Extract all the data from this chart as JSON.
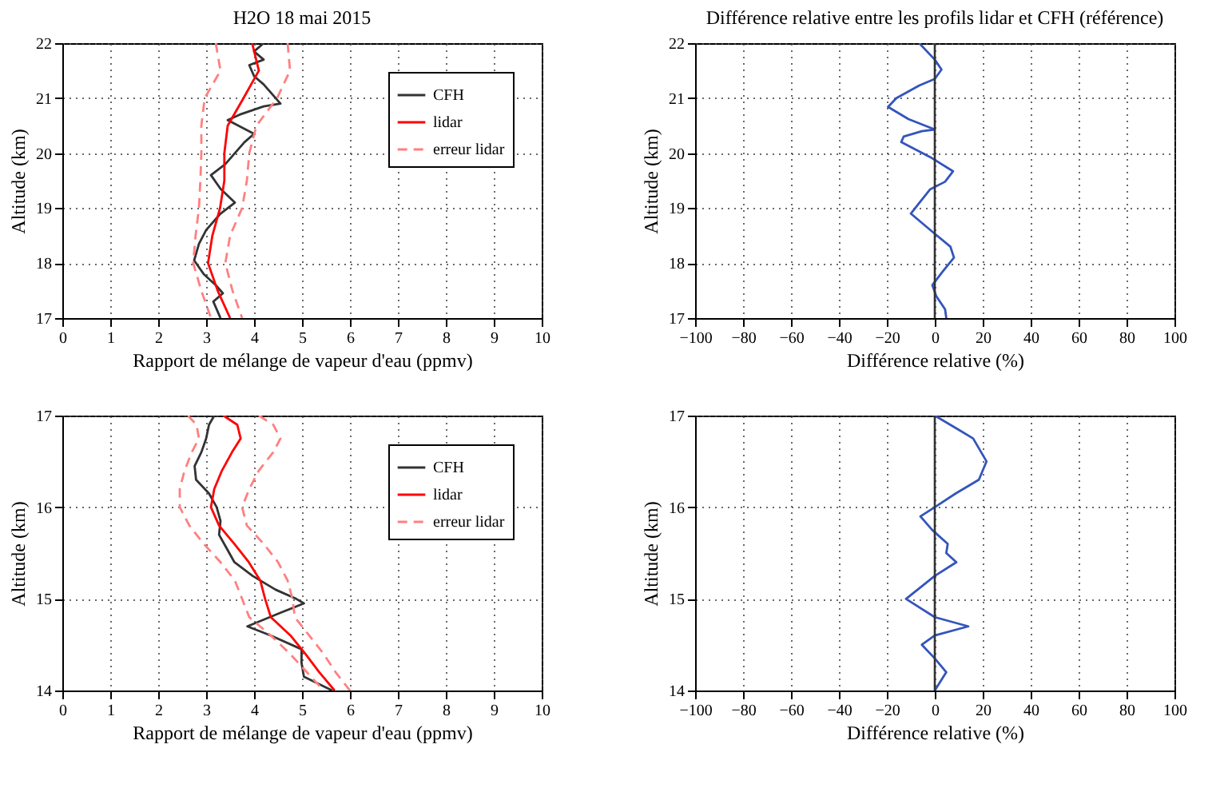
{
  "chart_data": [
    {
      "type": "line",
      "title": "H2O 18 mai 2015",
      "xlabel": "Rapport de mélange de vapeur d'eau (ppmv)",
      "ylabel": "Altitude (km)",
      "xlim": [
        0,
        10
      ],
      "xticks": [
        0,
        1,
        2,
        3,
        4,
        5,
        6,
        7,
        8,
        9,
        10
      ],
      "ylim": [
        17,
        22
      ],
      "yticks": [
        17,
        18,
        19,
        20,
        21,
        22
      ],
      "grid": true,
      "legend": "top right",
      "series": [
        {
          "name": "CFH",
          "color": "#333333",
          "x": [
            4.2,
            4.0,
            4.2,
            3.9,
            4.0,
            4.2,
            4.55,
            4.2,
            3.7,
            3.45,
            4.0,
            3.8,
            3.6,
            3.4,
            3.1,
            3.3,
            3.6,
            3.3,
            3.0,
            2.85,
            2.75,
            2.95,
            3.2,
            3.35,
            3.15,
            3.3
          ],
          "values": [
            22,
            21.85,
            21.7,
            21.6,
            21.4,
            21.25,
            20.9,
            20.85,
            20.7,
            20.6,
            20.35,
            20.2,
            20.0,
            19.8,
            19.6,
            19.35,
            19.1,
            18.9,
            18.6,
            18.35,
            18.05,
            17.8,
            17.6,
            17.45,
            17.3,
            17.0
          ]
        },
        {
          "name": "lidar",
          "color": "#ff0000",
          "x": [
            3.96,
            4.1,
            3.78,
            3.45,
            3.38,
            3.38,
            3.29,
            3.13,
            3.04,
            3.24,
            3.5
          ],
          "values": [
            22,
            21.5,
            21,
            20.5,
            20,
            19.5,
            19,
            18.5,
            18,
            17.5,
            17
          ]
        },
        {
          "name": "erreur lidar",
          "color": "#ff8080",
          "line_style": "dashed",
          "x": [
            3.2,
            3.3,
            2.97,
            2.9,
            2.9,
            2.88,
            2.85,
            2.78,
            2.73,
            2.9,
            3.1
          ],
          "values": [
            22,
            21.5,
            21,
            20.5,
            20,
            19.5,
            19,
            18.5,
            18,
            17.5,
            17
          ]
        },
        {
          "color": "#ff8080",
          "line_style": "dashed",
          "x": [
            4.7,
            4.75,
            4.48,
            4.05,
            3.9,
            3.85,
            3.75,
            3.5,
            3.4,
            3.55,
            3.75
          ],
          "values": [
            22,
            21.5,
            21,
            20.5,
            20,
            19.5,
            19,
            18.5,
            18,
            17.5,
            17
          ]
        }
      ]
    },
    {
      "type": "line",
      "title": "Différence relative entre les profils lidar et CFH (référence)",
      "xlabel": "Différence relative (%)",
      "ylabel": "Altitude (km)",
      "xlim": [
        -100,
        100
      ],
      "xticks": [
        -100,
        -80,
        -60,
        -40,
        -20,
        0,
        20,
        40,
        60,
        80,
        100
      ],
      "ylim": [
        17,
        22
      ],
      "yticks": [
        17,
        18,
        19,
        20,
        21,
        22
      ],
      "grid": true,
      "ref_lines": [
        {
          "axis": "x",
          "value": 0,
          "color": "#333333"
        }
      ],
      "series": [
        {
          "color": "#3355bb",
          "x": [
            -6.5,
            0,
            2.8,
            0,
            -6.5,
            -16,
            -19.5,
            -11,
            0,
            -5.4,
            -13,
            -14,
            -2,
            7.6,
            4.3,
            -2,
            -10,
            -1,
            6.5,
            8,
            3.2,
            -1,
            0.6,
            4.3,
            4.8
          ],
          "values": [
            22,
            21.7,
            21.52,
            21.35,
            21.23,
            21.0,
            20.84,
            20.62,
            20.43,
            20.4,
            20.3,
            20.2,
            19.93,
            19.67,
            19.48,
            19.34,
            18.9,
            18.57,
            18.3,
            18.1,
            17.84,
            17.6,
            17.4,
            17.16,
            17
          ]
        }
      ]
    },
    {
      "type": "line",
      "xlabel": "Rapport de mélange de vapeur d'eau (ppmv)",
      "ylabel": "Altitude (km)",
      "xlim": [
        0,
        10
      ],
      "xticks": [
        0,
        1,
        2,
        3,
        4,
        5,
        6,
        7,
        8,
        9,
        10
      ],
      "ylim": [
        14,
        17
      ],
      "yticks": [
        14,
        15,
        16,
        17
      ],
      "grid": true,
      "legend": "top right",
      "series": [
        {
          "name": "CFH",
          "color": "#333333",
          "x": [
            3.17,
            3.06,
            3.0,
            2.9,
            2.76,
            2.79,
            3.06,
            3.22,
            3.3,
            3.27,
            3.43,
            3.59,
            3.97,
            4.45,
            4.88,
            5.04,
            4.56,
            3.86,
            4.35,
            4.99,
            4.99,
            5.04,
            5.63
          ],
          "values": [
            17,
            16.9,
            16.75,
            16.6,
            16.45,
            16.3,
            16.15,
            16.0,
            15.85,
            15.7,
            15.55,
            15.4,
            15.25,
            15.1,
            15.0,
            14.95,
            14.85,
            14.7,
            14.6,
            14.45,
            14.3,
            14.15,
            14.0
          ]
        },
        {
          "name": "lidar",
          "color": "#ff0000",
          "x": [
            3.36,
            3.65,
            3.72,
            3.54,
            3.33,
            3.17,
            3.1,
            3.27,
            3.59,
            3.89,
            4.13,
            4.23,
            4.35,
            4.76,
            5.07,
            5.36,
            5.68
          ],
          "values": [
            17,
            16.9,
            16.75,
            16.6,
            16.4,
            16.2,
            16.0,
            15.8,
            15.6,
            15.4,
            15.2,
            15.0,
            14.8,
            14.6,
            14.4,
            14.2,
            14.0
          ]
        },
        {
          "name": "erreur lidar",
          "color": "#ff8080",
          "line_style": "dashed",
          "x": [
            2.62,
            2.8,
            2.85,
            2.7,
            2.55,
            2.45,
            2.45,
            2.65,
            2.95,
            3.3,
            3.6,
            3.75,
            3.9,
            4.35,
            4.75,
            5.1,
            5.45
          ],
          "values": [
            17,
            16.9,
            16.75,
            16.6,
            16.4,
            16.2,
            16.0,
            15.8,
            15.6,
            15.4,
            15.2,
            15.0,
            14.8,
            14.6,
            14.4,
            14.2,
            14.0
          ]
        },
        {
          "color": "#ff8080",
          "line_style": "dashed",
          "x": [
            4.1,
            4.4,
            4.55,
            4.4,
            4.1,
            3.9,
            3.75,
            3.85,
            4.2,
            4.5,
            4.7,
            4.8,
            4.85,
            5.15,
            5.45,
            5.7,
            6.0
          ],
          "values": [
            17,
            16.9,
            16.75,
            16.6,
            16.4,
            16.2,
            16.0,
            15.8,
            15.6,
            15.4,
            15.2,
            15.0,
            14.8,
            14.6,
            14.4,
            14.2,
            14.0
          ]
        }
      ]
    },
    {
      "type": "line",
      "xlabel": "Différence relative (%)",
      "ylabel": "Altitude (km)",
      "xlim": [
        -100,
        100
      ],
      "xticks": [
        -100,
        -80,
        -60,
        -40,
        -20,
        0,
        20,
        40,
        60,
        80,
        100
      ],
      "ylim": [
        14,
        17
      ],
      "yticks": [
        14,
        15,
        16,
        17
      ],
      "grid": true,
      "ref_lines": [
        {
          "axis": "x",
          "value": 0,
          "color": "#333333"
        }
      ],
      "series": [
        {
          "color": "#3355bb",
          "x": [
            0,
            9.7,
            16,
            21.6,
            18.4,
            8.7,
            0,
            -6,
            -1,
            5.4,
            4.8,
            9,
            0,
            -12,
            0,
            14,
            0,
            -5.4,
            0,
            4.8,
            0
          ],
          "values": [
            17,
            16.85,
            16.75,
            16.5,
            16.3,
            16.15,
            16.0,
            15.9,
            15.75,
            15.6,
            15.5,
            15.4,
            15.25,
            15.0,
            14.8,
            14.7,
            14.6,
            14.5,
            14.35,
            14.2,
            14.0
          ]
        }
      ]
    }
  ]
}
